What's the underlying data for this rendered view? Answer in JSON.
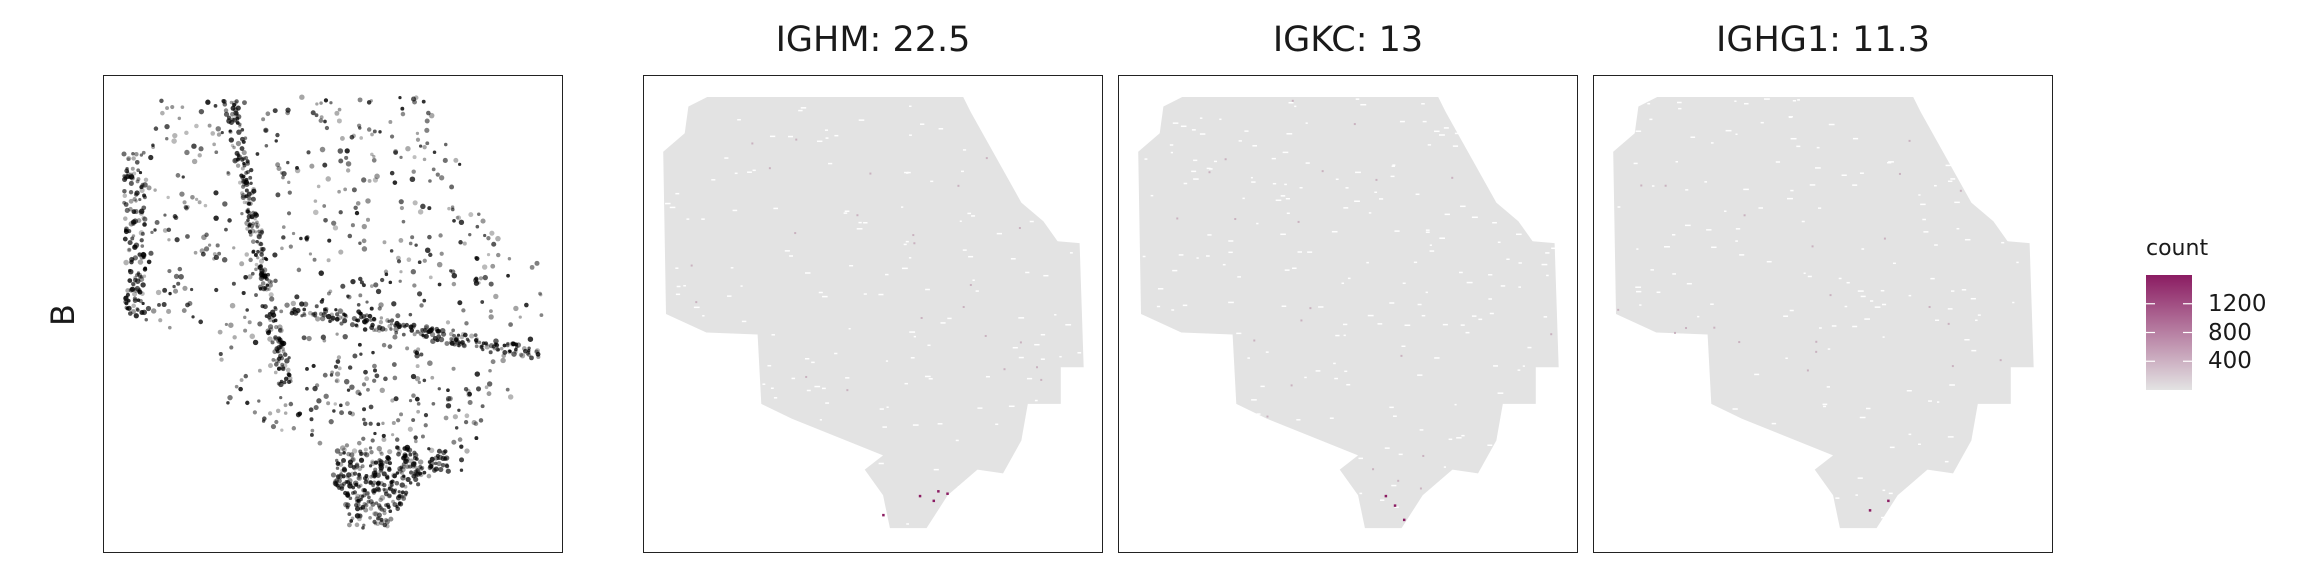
{
  "chart_data": [
    {
      "type": "scatter",
      "panel": "cell-type",
      "row_label": "B",
      "title": "",
      "point_color": "#000000"
    },
    {
      "type": "scatter",
      "panel": "gene",
      "title": "IGHM: 22.5",
      "background_color": "#e3e3e3"
    },
    {
      "type": "scatter",
      "panel": "gene",
      "title": "IGKC: 13",
      "background_color": "#e3e3e3"
    },
    {
      "type": "scatter",
      "panel": "gene",
      "title": "IGHG1: 11.3",
      "background_color": "#e3e3e3"
    }
  ],
  "legend": {
    "title": "count",
    "ticks": [
      "1200",
      "800",
      "400"
    ],
    "tick_values": [
      1200,
      800,
      400
    ],
    "color_low": "#e3e3e3",
    "color_high": "#8b1c62"
  }
}
